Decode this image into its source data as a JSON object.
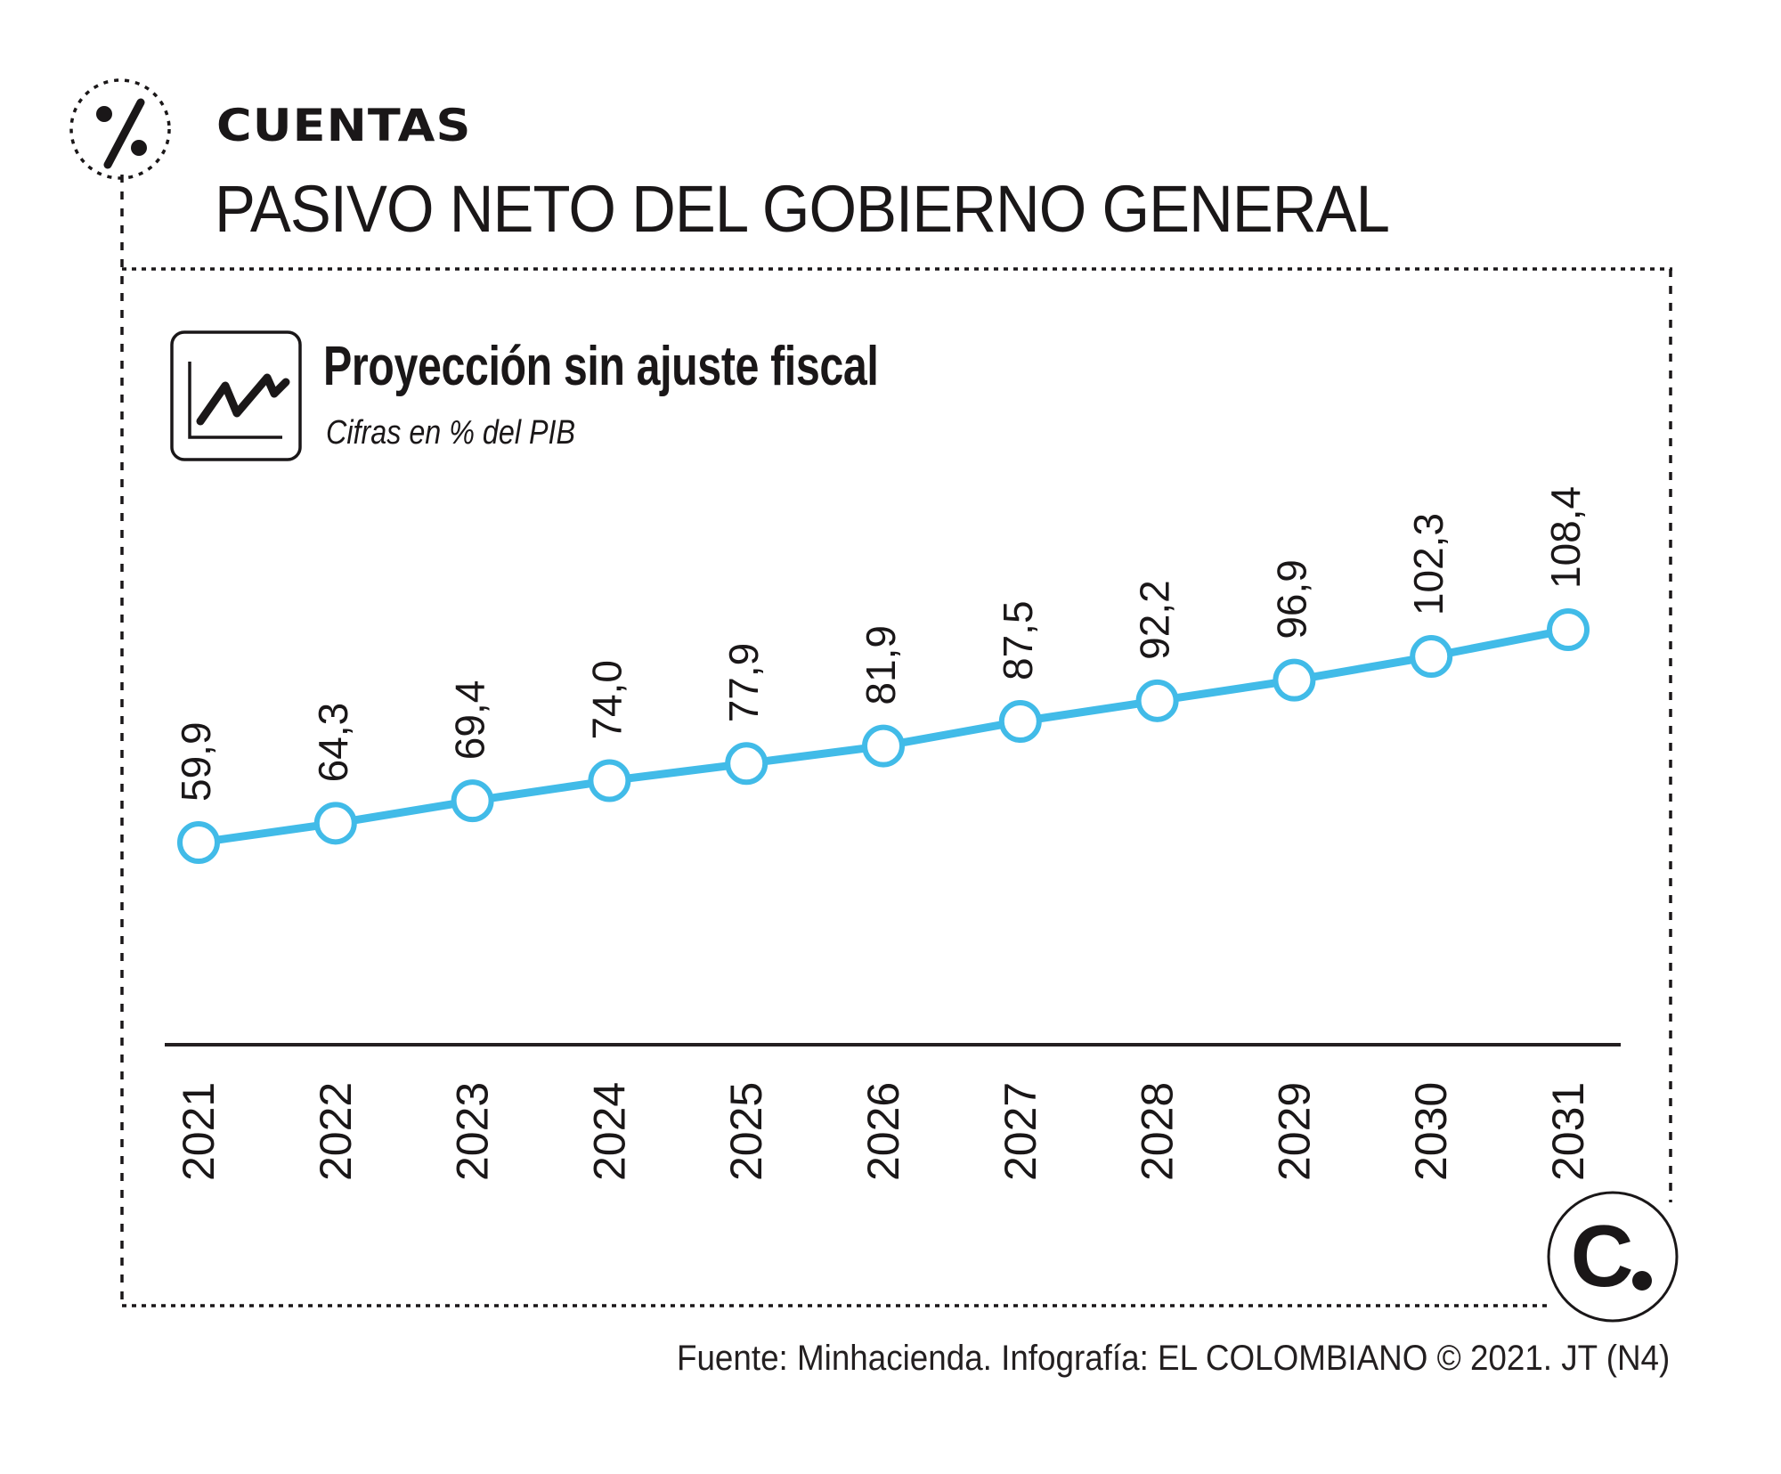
{
  "header": {
    "section_label": "CUENTAS",
    "title": "PASIVO NETO DEL GOBIERNO GENERAL",
    "section_icon": "percent-icon"
  },
  "chart_header": {
    "icon": "line-chart-icon",
    "title": "Proyección sin ajuste fiscal",
    "subtitle": "Cifras en % del PIB"
  },
  "chart_data": {
    "type": "line",
    "title": "Proyección sin ajuste fiscal",
    "subtitle": "Cifras en % del PIB",
    "xlabel": "",
    "ylabel": "",
    "categories": [
      "2021",
      "2022",
      "2023",
      "2024",
      "2025",
      "2026",
      "2027",
      "2028",
      "2029",
      "2030",
      "2031"
    ],
    "series": [
      {
        "name": "Pasivo neto del gobierno general (% del PIB)",
        "values": [
          59.9,
          64.3,
          69.4,
          74.0,
          77.9,
          81.9,
          87.5,
          92.2,
          96.9,
          102.3,
          108.4
        ],
        "labels": [
          "59,9",
          "64,3",
          "69,4",
          "74,0",
          "77,9",
          "81,9",
          "87,5",
          "92,2",
          "96,9",
          "102,3",
          "108,4"
        ],
        "color": "#41bbe8"
      }
    ],
    "grid": false,
    "legend": "none",
    "marker": "hollow-circle"
  },
  "footer": {
    "source": "Fuente: Minhacienda. Infografía: EL COLOMBIANO © 2021. JT (N4)",
    "logo": "el-colombiano-logo"
  },
  "colors": {
    "line": "#41bbe8",
    "text": "#1a1718",
    "background": "#ffffff"
  }
}
